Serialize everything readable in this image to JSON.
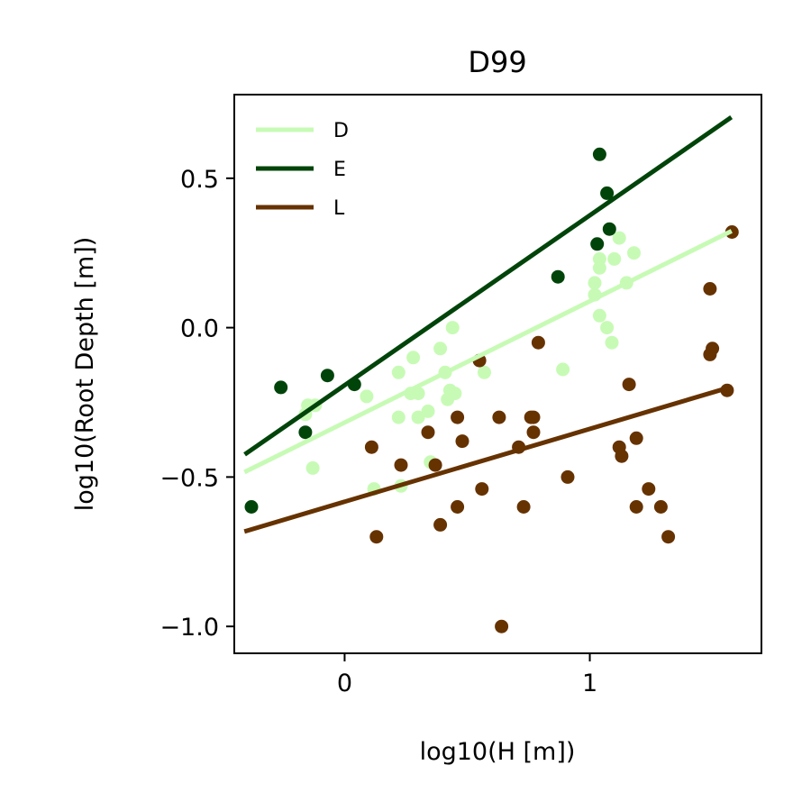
{
  "chart_data": {
    "type": "scatter",
    "title": "D99",
    "xlabel": "log10(H [m])",
    "ylabel": "log10(Root Depth [m])",
    "xlim": [
      -0.45,
      1.7
    ],
    "ylim": [
      -1.09,
      0.78
    ],
    "xticks": [
      {
        "value": 0,
        "label": "0"
      },
      {
        "value": 1,
        "label": "1"
      }
    ],
    "yticks": [
      {
        "value": -1.0,
        "label": "−1.0"
      },
      {
        "value": -0.5,
        "label": "−0.5"
      },
      {
        "value": 0.0,
        "label": "0.0"
      },
      {
        "value": 0.5,
        "label": "0.5"
      }
    ],
    "grid": false,
    "legend_position": "top-left",
    "series": [
      {
        "name": "D",
        "color": "#c7fbb5",
        "points": [
          [
            -0.16,
            -0.29
          ],
          [
            -0.15,
            -0.26
          ],
          [
            -0.12,
            -0.26
          ],
          [
            -0.13,
            -0.47
          ],
          [
            0.09,
            -0.23
          ],
          [
            0.12,
            -0.54
          ],
          [
            0.22,
            -0.15
          ],
          [
            0.22,
            -0.3
          ],
          [
            0.23,
            -0.53
          ],
          [
            0.27,
            -0.22
          ],
          [
            0.28,
            -0.1
          ],
          [
            0.3,
            -0.22
          ],
          [
            0.3,
            -0.3
          ],
          [
            0.34,
            -0.28
          ],
          [
            0.35,
            -0.45
          ],
          [
            0.39,
            -0.07
          ],
          [
            0.41,
            -0.15
          ],
          [
            0.42,
            -0.24
          ],
          [
            0.43,
            -0.21
          ],
          [
            0.45,
            -0.22
          ],
          [
            0.44,
            0.0
          ],
          [
            0.57,
            -0.15
          ],
          [
            0.89,
            -0.14
          ],
          [
            1.02,
            0.11
          ],
          [
            1.02,
            0.15
          ],
          [
            1.04,
            0.23
          ],
          [
            1.04,
            0.2
          ],
          [
            1.04,
            0.04
          ],
          [
            1.07,
            0.0
          ],
          [
            1.09,
            -0.05
          ],
          [
            1.1,
            0.23
          ],
          [
            1.12,
            0.3
          ],
          [
            1.15,
            0.15
          ],
          [
            1.18,
            0.25
          ]
        ],
        "fit": {
          "x": [
            -0.4,
            1.57
          ],
          "y": [
            -0.48,
            0.32
          ]
        }
      },
      {
        "name": "E",
        "color": "#00440a",
        "points": [
          [
            -0.38,
            -0.6
          ],
          [
            -0.26,
            -0.2
          ],
          [
            -0.16,
            -0.35
          ],
          [
            -0.07,
            -0.16
          ],
          [
            0.04,
            -0.19
          ],
          [
            0.87,
            0.17
          ],
          [
            1.03,
            0.28
          ],
          [
            1.04,
            0.58
          ],
          [
            1.07,
            0.45
          ],
          [
            1.08,
            0.33
          ]
        ],
        "fit": {
          "x": [
            -0.4,
            1.57
          ],
          "y": [
            -0.42,
            0.7
          ]
        }
      },
      {
        "name": "L",
        "color": "#663200",
        "points": [
          [
            0.11,
            -0.4
          ],
          [
            0.13,
            -0.7
          ],
          [
            0.23,
            -0.46
          ],
          [
            0.34,
            -0.35
          ],
          [
            0.37,
            -0.46
          ],
          [
            0.39,
            -0.66
          ],
          [
            0.46,
            -0.3
          ],
          [
            0.46,
            -0.6
          ],
          [
            0.48,
            -0.38
          ],
          [
            0.55,
            -0.11
          ],
          [
            0.56,
            -0.54
          ],
          [
            0.63,
            -0.3
          ],
          [
            0.64,
            -1.0
          ],
          [
            0.71,
            -0.4
          ],
          [
            0.73,
            -0.6
          ],
          [
            0.76,
            -0.3
          ],
          [
            0.77,
            -0.3
          ],
          [
            0.77,
            -0.35
          ],
          [
            0.79,
            -0.05
          ],
          [
            0.91,
            -0.5
          ],
          [
            1.12,
            -0.4
          ],
          [
            1.13,
            -0.43
          ],
          [
            1.16,
            -0.19
          ],
          [
            1.19,
            -0.37
          ],
          [
            1.19,
            -0.6
          ],
          [
            1.24,
            -0.54
          ],
          [
            1.29,
            -0.6
          ],
          [
            1.32,
            -0.7
          ],
          [
            1.49,
            0.13
          ],
          [
            1.49,
            -0.09
          ],
          [
            1.5,
            -0.07
          ],
          [
            1.56,
            -0.21
          ],
          [
            1.58,
            0.32
          ]
        ],
        "fit": {
          "x": [
            -0.4,
            1.57
          ],
          "y": [
            -0.68,
            -0.2
          ]
        }
      }
    ]
  }
}
